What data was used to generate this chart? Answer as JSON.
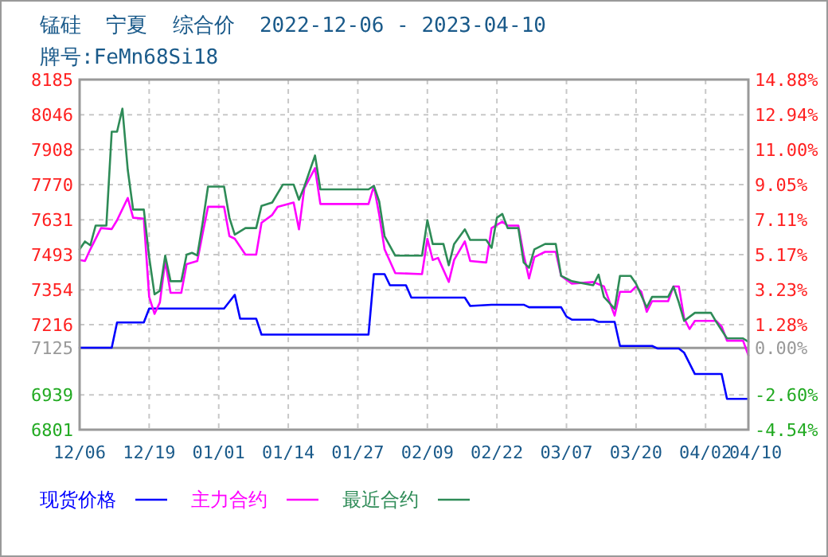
{
  "chart_data": {
    "type": "line",
    "title": "锰硅  宁夏  综合价  2022-12-06 - 2023-04-10",
    "subtitle": "牌号:FeMn68Si18",
    "xlim": [
      "2022-12-06",
      "2023-04-10"
    ],
    "xticks": [
      {
        "value": "2022-12-06",
        "label": "12/06"
      },
      {
        "value": "2022-12-19",
        "label": "12/19"
      },
      {
        "value": "2023-01-01",
        "label": "01/01"
      },
      {
        "value": "2023-01-14",
        "label": "01/14"
      },
      {
        "value": "2023-01-27",
        "label": "01/27"
      },
      {
        "value": "2023-02-09",
        "label": "02/09"
      },
      {
        "value": "2023-02-22",
        "label": "02/22"
      },
      {
        "value": "2023-03-07",
        "label": "03/07"
      },
      {
        "value": "2023-03-20",
        "label": "03/20"
      },
      {
        "value": "2023-04-02",
        "label": "04/02"
      },
      {
        "value": "2023-04-10",
        "label": "04/10"
      }
    ],
    "ylim": [
      6801,
      8185
    ],
    "yticks": [
      6801,
      6939,
      7125,
      7216,
      7354,
      7493,
      7631,
      7770,
      7908,
      8046,
      8185
    ],
    "y2lim": [
      -4.54,
      14.88
    ],
    "y2ticks": [
      {
        "value": -4.54,
        "label": "-4.54%"
      },
      {
        "value": -2.6,
        "label": "-2.60%"
      },
      {
        "value": 0,
        "label": "0.00%"
      },
      {
        "value": 1.28,
        "label": "1.28%"
      },
      {
        "value": 3.23,
        "label": "3.23%"
      },
      {
        "value": 5.17,
        "label": "5.17%"
      },
      {
        "value": 7.11,
        "label": "7.11%"
      },
      {
        "value": 9.05,
        "label": "9.05%"
      },
      {
        "value": 11,
        "label": "11.00%"
      },
      {
        "value": 12.94,
        "label": "12.94%"
      },
      {
        "value": 14.88,
        "label": "14.88%"
      }
    ],
    "ref_lines": [
      {
        "axis": "y2",
        "value": 0,
        "color": "#999999",
        "line_style": "solid"
      }
    ],
    "grid": true,
    "legend": "bottom",
    "line_style": "solid",
    "marker": "none",
    "series": [
      {
        "name": "现货价格",
        "color": "#0000ff",
        "x": [
          "2022-12-06",
          "2022-12-12",
          "2022-12-13",
          "2022-12-18",
          "2022-12-19",
          "2023-01-02",
          "2023-01-04",
          "2023-01-05",
          "2023-01-08",
          "2023-01-09",
          "2023-01-29",
          "2023-01-30",
          "2023-02-01",
          "2023-02-02",
          "2023-02-05",
          "2023-02-06",
          "2023-02-16",
          "2023-02-17",
          "2023-02-21",
          "2023-02-27",
          "2023-02-28",
          "2023-03-06",
          "2023-03-07",
          "2023-03-08",
          "2023-03-12",
          "2023-03-13",
          "2023-03-16",
          "2023-03-17",
          "2023-03-23",
          "2023-03-24",
          "2023-03-28",
          "2023-03-29",
          "2023-03-31",
          "2023-04-05",
          "2023-04-06",
          "2023-04-10"
        ],
        "values": [
          7125,
          7125,
          7225,
          7225,
          7280,
          7280,
          7334,
          7240,
          7240,
          7177,
          7177,
          7416,
          7416,
          7372,
          7372,
          7323,
          7323,
          7290,
          7295,
          7295,
          7285,
          7285,
          7248,
          7236,
          7236,
          7227,
          7227,
          7132,
          7132,
          7122,
          7122,
          7105,
          7021,
          7021,
          6923,
          6923
        ]
      },
      {
        "name": "主力合约",
        "color": "#ff00ff",
        "x": [
          "2022-12-06",
          "2022-12-07",
          "2022-12-08",
          "2022-12-10",
          "2022-12-12",
          "2022-12-13",
          "2022-12-15",
          "2022-12-16",
          "2022-12-18",
          "2022-12-19",
          "2022-12-20",
          "2022-12-21",
          "2022-12-22",
          "2022-12-23",
          "2022-12-25",
          "2022-12-26",
          "2022-12-28",
          "2022-12-29",
          "2022-12-30",
          "2023-01-02",
          "2023-01-03",
          "2023-01-04",
          "2023-01-06",
          "2023-01-08",
          "2023-01-09",
          "2023-01-11",
          "2023-01-12",
          "2023-01-15",
          "2023-01-16",
          "2023-01-17",
          "2023-01-19",
          "2023-01-20",
          "2023-01-29",
          "2023-01-30",
          "2023-01-31",
          "2023-02-01",
          "2023-02-03",
          "2023-02-08",
          "2023-02-09",
          "2023-02-10",
          "2023-02-11",
          "2023-02-13",
          "2023-02-14",
          "2023-02-16",
          "2023-02-17",
          "2023-02-20",
          "2023-02-21",
          "2023-02-23",
          "2023-02-24",
          "2023-02-26",
          "2023-02-27",
          "2023-02-28",
          "2023-03-01",
          "2023-03-03",
          "2023-03-05",
          "2023-03-06",
          "2023-03-08",
          "2023-03-12",
          "2023-03-14",
          "2023-03-16",
          "2023-03-17",
          "2023-03-19",
          "2023-03-20",
          "2023-03-21",
          "2023-03-22",
          "2023-03-23",
          "2023-03-26",
          "2023-03-27",
          "2023-03-28",
          "2023-03-29",
          "2023-03-30",
          "2023-03-31",
          "2023-04-04",
          "2023-04-05",
          "2023-04-06",
          "2023-04-09",
          "2023-04-10"
        ],
        "values": [
          7472,
          7468,
          7514,
          7598,
          7594,
          7629,
          7717,
          7639,
          7635,
          7326,
          7259,
          7304,
          7468,
          7342,
          7342,
          7455,
          7468,
          7577,
          7682,
          7682,
          7566,
          7556,
          7493,
          7493,
          7619,
          7650,
          7682,
          7699,
          7593,
          7755,
          7835,
          7693,
          7693,
          7765,
          7650,
          7514,
          7420,
          7416,
          7556,
          7472,
          7480,
          7385,
          7472,
          7545,
          7468,
          7462,
          7598,
          7623,
          7608,
          7608,
          7493,
          7399,
          7483,
          7504,
          7504,
          7409,
          7378,
          7385,
          7367,
          7252,
          7346,
          7346,
          7367,
          7346,
          7267,
          7309,
          7309,
          7367,
          7367,
          7241,
          7199,
          7231,
          7231,
          7209,
          7153,
          7153,
          7095
        ]
      },
      {
        "name": "最近合约",
        "color": "#2e8b57",
        "x": [
          "2022-12-06",
          "2022-12-07",
          "2022-12-08",
          "2022-12-09",
          "2022-12-11",
          "2022-12-12",
          "2022-12-13",
          "2022-12-14",
          "2022-12-15",
          "2022-12-16",
          "2022-12-18",
          "2022-12-19",
          "2022-12-20",
          "2022-12-21",
          "2022-12-22",
          "2022-12-23",
          "2022-12-25",
          "2022-12-26",
          "2022-12-27",
          "2022-12-28",
          "2022-12-29",
          "2022-12-30",
          "2023-01-02",
          "2023-01-03",
          "2023-01-04",
          "2023-01-06",
          "2023-01-08",
          "2023-01-09",
          "2023-01-11",
          "2023-01-13",
          "2023-01-15",
          "2023-01-16",
          "2023-01-17",
          "2023-01-19",
          "2023-01-20",
          "2023-01-29",
          "2023-01-30",
          "2023-01-31",
          "2023-02-01",
          "2023-02-03",
          "2023-02-08",
          "2023-02-09",
          "2023-02-10",
          "2023-02-12",
          "2023-02-13",
          "2023-02-14",
          "2023-02-16",
          "2023-02-17",
          "2023-02-20",
          "2023-02-21",
          "2023-02-22",
          "2023-02-23",
          "2023-02-24",
          "2023-02-26",
          "2023-02-27",
          "2023-02-28",
          "2023-03-01",
          "2023-03-03",
          "2023-03-05",
          "2023-03-06",
          "2023-03-08",
          "2023-03-12",
          "2023-03-13",
          "2023-03-14",
          "2023-03-16",
          "2023-03-17",
          "2023-03-19",
          "2023-03-20",
          "2023-03-22",
          "2023-03-23",
          "2023-03-26",
          "2023-03-27",
          "2023-03-28",
          "2023-03-29",
          "2023-03-31",
          "2023-04-03",
          "2023-04-04",
          "2023-04-06",
          "2023-04-09",
          "2023-04-10"
        ],
        "values": [
          7514,
          7545,
          7530,
          7608,
          7608,
          7979,
          7979,
          8070,
          7828,
          7671,
          7671,
          7483,
          7336,
          7350,
          7489,
          7388,
          7388,
          7493,
          7500,
          7490,
          7619,
          7762,
          7762,
          7639,
          7572,
          7598,
          7598,
          7686,
          7699,
          7770,
          7770,
          7710,
          7762,
          7885,
          7751,
          7751,
          7765,
          7703,
          7566,
          7489,
          7489,
          7629,
          7535,
          7535,
          7451,
          7535,
          7593,
          7551,
          7551,
          7520,
          7639,
          7654,
          7598,
          7598,
          7462,
          7441,
          7514,
          7535,
          7535,
          7409,
          7388,
          7372,
          7414,
          7326,
          7279,
          7409,
          7409,
          7378,
          7284,
          7326,
          7326,
          7367,
          7304,
          7231,
          7263,
          7263,
          7227,
          7162,
          7162,
          7148
        ]
      }
    ]
  }
}
